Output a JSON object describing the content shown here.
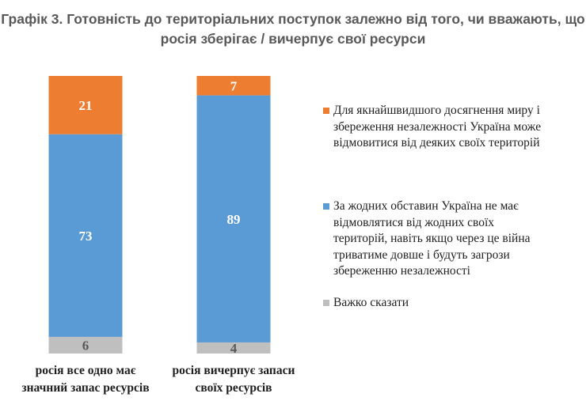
{
  "chart_data": {
    "type": "bar",
    "stacked": true,
    "title_lines": [
      "Графік 3. Готовність до територіальних поступок залежно від того, чи вважають, що",
      "росія зберігає / вичерпує свої ресурси"
    ],
    "categories": [
      [
        "росія все одно має",
        "значний запас ресурсів"
      ],
      [
        "росія вичерпує запаси",
        "своїх ресурсів"
      ]
    ],
    "series": [
      {
        "name": "Важко сказати",
        "values": [
          6,
          4
        ],
        "color": "#bfbfbf",
        "label_color": "#595959"
      },
      {
        "name": "За жодних обставин Україна не має відмовлятися від жодних своїх територій, навіть якщо через це війна триватиме довше і будуть загрози збереженню незалежності",
        "values": [
          73,
          89
        ],
        "color": "#5b9bd5",
        "label_color": "#ffffff"
      },
      {
        "name": "Для якнайшвидшого досягнення миру і збереження незалежності Україна може відмовитися від деяких своїх територій",
        "values": [
          21,
          7
        ],
        "color": "#ed7d31",
        "label_color": "#ffffff"
      }
    ],
    "legend": [
      {
        "series_index": 2,
        "lines": [
          "Для якнайшвидшого досягнення миру і",
          "збереження незалежності Україна може",
          "відмовитися від деяких своїх територій"
        ]
      },
      {
        "series_index": 1,
        "lines": [
          "За жодних обставин Україна не має",
          "відмовлятися від жодних своїх",
          "територій, навіть якщо через це війна",
          "триватиме довше і будуть загрози",
          "збереженню незалежності"
        ]
      },
      {
        "series_index": 0,
        "lines": [
          "Важко сказати"
        ]
      }
    ],
    "legend_position": "right",
    "ylim": [
      0,
      100
    ],
    "grid": false,
    "xlabel": "",
    "ylabel": ""
  }
}
